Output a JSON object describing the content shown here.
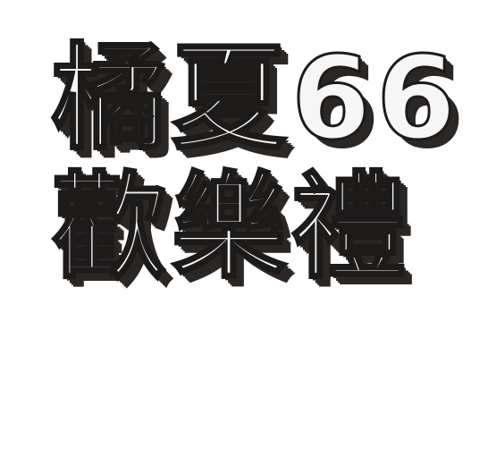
{
  "headline": {
    "line1": "橘夏66",
    "line2": "歡樂禮"
  },
  "colors": {
    "background": "#ffffff",
    "text_fill": "#f6f6f6",
    "outline": "#1d1b1a",
    "shadow": "#2a2725"
  }
}
